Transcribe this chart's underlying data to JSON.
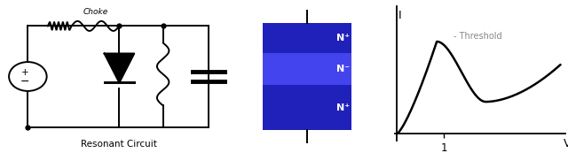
{
  "bg_color": "#ffffff",
  "circuit_label": "Resonant Circuit",
  "cross_section": {
    "outer_color": "#000000",
    "n_plus_color": "#2020bb",
    "n_minus_color": "#4444ee",
    "label_color": "#ffffff"
  },
  "iv_curve": {
    "threshold_label": "- Threshold",
    "xlabel": "V",
    "ylabel": "I",
    "xtick": "1",
    "curve_color": "#000000",
    "axis_color": "#000000",
    "label_color": "#888888"
  }
}
